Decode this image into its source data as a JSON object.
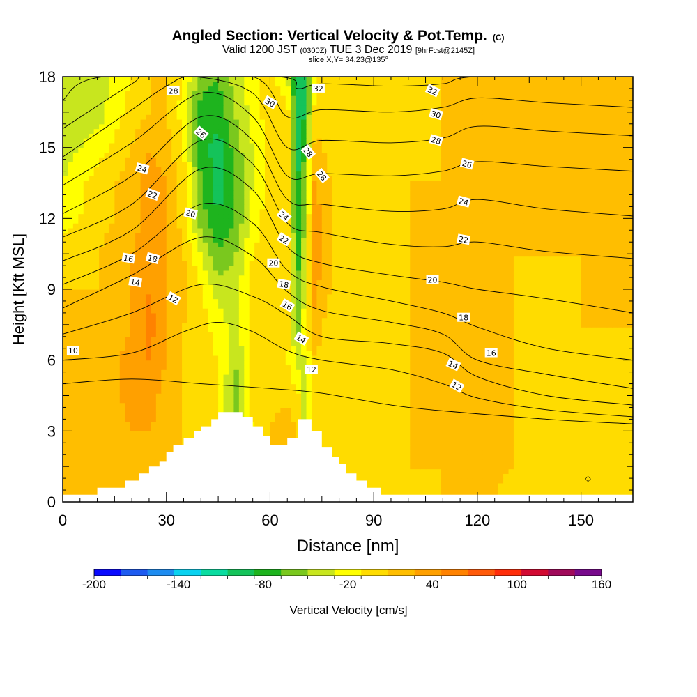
{
  "chart_data": {
    "type": "heatmap",
    "title": "Angled Section: Vertical Velocity & Pot.Temp.",
    "title_suffix": "(C)",
    "subtitle": {
      "valid_prefix": "Valid 1200 JST",
      "zulu": "(0300Z)",
      "date": "TUE 3 Dec 2019",
      "forecast": "[9hrFcst@2145Z]"
    },
    "slice_label": "slice X,Y= 34,23@135°",
    "xlabel": "Distance [nm]",
    "ylabel": "Height [Kft MSL]",
    "xlim": [
      0,
      165
    ],
    "ylim": [
      0,
      18
    ],
    "x_ticks": [
      "0",
      "30",
      "60",
      "90",
      "120",
      "150"
    ],
    "y_ticks": [
      "0",
      "3",
      "6",
      "9",
      "12",
      "15",
      "18"
    ],
    "colorbar": {
      "label": "Vertical Velocity [cm/s]",
      "tick_labels": [
        "-200",
        "-140",
        "-80",
        "-20",
        "40",
        "100",
        "160"
      ],
      "range": [
        -200,
        160
      ],
      "step": 20,
      "colors": [
        "#0a0aff",
        "#1e5bf0",
        "#1e8cf0",
        "#0ad2f0",
        "#0adca0",
        "#14c35a",
        "#1eb41e",
        "#7ac81e",
        "#c8e61e",
        "#ffff00",
        "#ffdc00",
        "#ffbe00",
        "#ffa000",
        "#ff8200",
        "#ff5a0a",
        "#ff2d0a",
        "#d20a32",
        "#a00a5a",
        "#780a8c"
      ]
    },
    "vertical_velocity_cm_s": {
      "x": [
        0,
        10,
        20,
        25,
        30,
        35,
        40,
        45,
        50,
        55,
        60,
        65,
        68,
        70,
        73,
        75,
        80,
        85,
        90,
        100,
        110,
        115,
        120,
        130,
        140,
        150,
        165
      ],
      "y": [
        0,
        1.5,
        3,
        4.5,
        6,
        7.5,
        9,
        10.5,
        12,
        13.5,
        15,
        16.5,
        18
      ],
      "values": [
        [
          20,
          20,
          20,
          20,
          20,
          20,
          20,
          20,
          20,
          10,
          20,
          30,
          10,
          10,
          10,
          10,
          10,
          20,
          10,
          10,
          20,
          30,
          30,
          10,
          10,
          10,
          20
        ],
        [
          20,
          20,
          30,
          30,
          20,
          20,
          20,
          10,
          -10,
          10,
          20,
          30,
          10,
          -10,
          10,
          10,
          10,
          20,
          10,
          20,
          20,
          30,
          30,
          20,
          10,
          10,
          20
        ],
        [
          20,
          20,
          40,
          40,
          30,
          20,
          10,
          0,
          -40,
          0,
          20,
          40,
          10,
          -20,
          10,
          10,
          10,
          20,
          10,
          20,
          20,
          20,
          20,
          20,
          10,
          10,
          20
        ],
        [
          20,
          20,
          50,
          50,
          30,
          20,
          10,
          0,
          -50,
          10,
          10,
          10,
          10,
          -40,
          10,
          10,
          10,
          20,
          10,
          20,
          20,
          20,
          20,
          20,
          10,
          10,
          20
        ],
        [
          20,
          20,
          50,
          60,
          40,
          20,
          10,
          0,
          -40,
          10,
          10,
          0,
          -30,
          -20,
          20,
          10,
          10,
          20,
          10,
          20,
          20,
          20,
          20,
          20,
          10,
          10,
          20
        ],
        [
          20,
          20,
          40,
          70,
          40,
          20,
          10,
          -10,
          -30,
          10,
          10,
          10,
          -50,
          -10,
          40,
          20,
          10,
          20,
          10,
          20,
          20,
          20,
          20,
          20,
          10,
          20,
          20
        ],
        [
          20,
          20,
          40,
          60,
          40,
          30,
          0,
          -30,
          -30,
          10,
          10,
          10,
          -60,
          -20,
          50,
          30,
          10,
          10,
          10,
          20,
          20,
          20,
          20,
          20,
          10,
          20,
          20
        ],
        [
          10,
          20,
          40,
          50,
          40,
          20,
          -20,
          -60,
          -40,
          0,
          10,
          10,
          -70,
          -30,
          60,
          40,
          10,
          10,
          10,
          20,
          20,
          20,
          20,
          20,
          20,
          20,
          20
        ],
        [
          -10,
          10,
          30,
          50,
          40,
          10,
          -50,
          -80,
          -60,
          -10,
          10,
          10,
          -80,
          -40,
          60,
          30,
          10,
          10,
          10,
          20,
          20,
          20,
          20,
          20,
          20,
          20,
          20
        ],
        [
          -20,
          10,
          30,
          50,
          40,
          10,
          -60,
          -90,
          -60,
          -20,
          10,
          10,
          -80,
          -50,
          50,
          30,
          10,
          10,
          10,
          20,
          20,
          20,
          20,
          20,
          20,
          20,
          20
        ],
        [
          -30,
          -10,
          20,
          40,
          30,
          0,
          -70,
          -90,
          -50,
          -20,
          10,
          10,
          -90,
          -60,
          30,
          20,
          10,
          10,
          10,
          10,
          20,
          20,
          20,
          20,
          20,
          20,
          20
        ],
        [
          -40,
          -30,
          10,
          20,
          20,
          -10,
          -70,
          -70,
          -40,
          -10,
          10,
          10,
          -100,
          -80,
          10,
          10,
          10,
          10,
          10,
          10,
          20,
          30,
          30,
          20,
          20,
          20,
          20
        ],
        [
          -30,
          -30,
          0,
          20,
          20,
          0,
          -50,
          -60,
          -30,
          -10,
          10,
          -20,
          -100,
          -80,
          -10,
          10,
          10,
          10,
          10,
          10,
          20,
          30,
          30,
          20,
          20,
          20,
          20
        ]
      ]
    },
    "terrain_kft": {
      "x": [
        0,
        10,
        15,
        18,
        20,
        22,
        25,
        28,
        30,
        32,
        35,
        38,
        40,
        43,
        45,
        48,
        50,
        52,
        55,
        58,
        60,
        62,
        65,
        68,
        70,
        72,
        75,
        78,
        80,
        82,
        85,
        88,
        90,
        92,
        165
      ],
      "y": [
        0.3,
        0.6,
        0.6,
        0.9,
        0.9,
        1.2,
        1.5,
        1.7,
        2.1,
        2.4,
        2.7,
        3.0,
        3.2,
        3.5,
        3.8,
        3.8,
        3.8,
        3.6,
        3.2,
        2.8,
        2.4,
        2.4,
        2.7,
        3.5,
        3.5,
        3.0,
        2.3,
        1.9,
        1.6,
        1.2,
        0.9,
        0.6,
        0.6,
        0.3,
        0.3
      ]
    },
    "theta_contours_c": [
      {
        "level": 10,
        "label": "10",
        "points": [
          [
            0,
            5.0
          ],
          [
            20,
            5.2
          ],
          [
            40,
            5.0
          ],
          [
            60,
            4.8
          ],
          [
            75,
            4.6
          ],
          [
            100,
            4.0
          ],
          [
            140,
            3.5
          ],
          [
            165,
            3.3
          ]
        ]
      },
      {
        "level": 12,
        "label": "12",
        "points": [
          [
            0,
            6.0
          ],
          [
            20,
            6.3
          ],
          [
            35,
            7.2
          ],
          [
            45,
            7.6
          ],
          [
            55,
            7.2
          ],
          [
            65,
            6.4
          ],
          [
            75,
            6.0
          ],
          [
            95,
            5.6
          ],
          [
            110,
            5.0
          ],
          [
            120,
            4.4
          ],
          [
            140,
            3.9
          ],
          [
            165,
            3.6
          ]
        ]
      },
      {
        "level": 14,
        "label": "14",
        "points": [
          [
            0,
            7.1
          ],
          [
            20,
            8.0
          ],
          [
            40,
            9.2
          ],
          [
            55,
            8.7
          ],
          [
            65,
            7.9
          ],
          [
            75,
            7.0
          ],
          [
            95,
            6.7
          ],
          [
            110,
            6.3
          ],
          [
            120,
            5.3
          ],
          [
            140,
            4.5
          ],
          [
            165,
            4.1
          ]
        ]
      },
      {
        "level": 16,
        "label": "16",
        "points": [
          [
            0,
            8.2
          ],
          [
            20,
            9.6
          ],
          [
            40,
            11.2
          ],
          [
            55,
            10.4
          ],
          [
            65,
            8.9
          ],
          [
            75,
            8.1
          ],
          [
            95,
            7.6
          ],
          [
            110,
            7.1
          ],
          [
            120,
            6.0
          ],
          [
            140,
            5.4
          ],
          [
            165,
            4.8
          ]
        ]
      },
      {
        "level": 18,
        "label": "18",
        "points": [
          [
            0,
            9.2
          ],
          [
            20,
            10.5
          ],
          [
            40,
            12.6
          ],
          [
            55,
            11.8
          ],
          [
            65,
            9.8
          ],
          [
            75,
            9.1
          ],
          [
            95,
            8.5
          ],
          [
            110,
            8.0
          ],
          [
            120,
            7.4
          ],
          [
            140,
            6.5
          ],
          [
            165,
            6.0
          ]
        ]
      },
      {
        "level": 20,
        "label": "20",
        "points": [
          [
            0,
            10.2
          ],
          [
            20,
            11.5
          ],
          [
            40,
            14.1
          ],
          [
            55,
            13.2
          ],
          [
            65,
            10.8
          ],
          [
            75,
            10.1
          ],
          [
            95,
            9.6
          ],
          [
            110,
            9.3
          ],
          [
            120,
            9.0
          ],
          [
            140,
            8.6
          ],
          [
            165,
            8.0
          ]
        ]
      },
      {
        "level": 22,
        "label": "22",
        "points": [
          [
            0,
            11.2
          ],
          [
            20,
            12.6
          ],
          [
            40,
            15.3
          ],
          [
            55,
            14.3
          ],
          [
            65,
            11.8
          ],
          [
            75,
            11.4
          ],
          [
            95,
            10.9
          ],
          [
            110,
            10.8
          ],
          [
            120,
            11.0
          ],
          [
            140,
            10.6
          ],
          [
            165,
            10.3
          ]
        ]
      },
      {
        "level": 24,
        "label": "24",
        "points": [
          [
            0,
            12.2
          ],
          [
            20,
            13.8
          ],
          [
            40,
            16.3
          ],
          [
            55,
            15.3
          ],
          [
            65,
            12.8
          ],
          [
            75,
            12.6
          ],
          [
            95,
            12.3
          ],
          [
            110,
            12.4
          ],
          [
            120,
            12.8
          ],
          [
            140,
            12.4
          ],
          [
            165,
            12.1
          ]
        ]
      },
      {
        "level": 26,
        "label": "26",
        "points": [
          [
            0,
            13.4
          ],
          [
            20,
            15.2
          ],
          [
            40,
            17.3
          ],
          [
            55,
            16.3
          ],
          [
            65,
            13.8
          ],
          [
            75,
            13.9
          ],
          [
            95,
            13.8
          ],
          [
            110,
            14.0
          ],
          [
            120,
            14.4
          ],
          [
            140,
            14.2
          ],
          [
            165,
            14.0
          ]
        ]
      },
      {
        "level": 28,
        "label": "28",
        "points": [
          [
            0,
            14.6
          ],
          [
            20,
            16.6
          ],
          [
            30,
            17.6
          ],
          [
            38,
            18.0
          ],
          [
            55,
            17.3
          ],
          [
            65,
            15.0
          ],
          [
            75,
            15.3
          ],
          [
            95,
            15.2
          ],
          [
            110,
            15.4
          ],
          [
            120,
            15.9
          ],
          [
            140,
            15.7
          ],
          [
            165,
            15.5
          ]
        ]
      },
      {
        "level": 30,
        "label": "30",
        "points": [
          [
            0,
            15.8
          ],
          [
            20,
            17.7
          ],
          [
            25,
            18.0
          ],
          [
            55,
            18.0
          ],
          [
            65,
            16.3
          ],
          [
            75,
            16.6
          ],
          [
            95,
            16.5
          ],
          [
            110,
            16.7
          ],
          [
            120,
            17.1
          ],
          [
            140,
            16.9
          ],
          [
            165,
            16.7
          ]
        ]
      },
      {
        "level": 32,
        "label": "32",
        "points": [
          [
            0,
            17.0
          ],
          [
            12,
            18.0
          ],
          [
            62,
            18.0
          ],
          [
            68,
            17.5
          ],
          [
            75,
            17.7
          ],
          [
            95,
            17.6
          ],
          [
            110,
            17.7
          ],
          [
            120,
            18.0
          ],
          [
            165,
            18.0
          ]
        ]
      }
    ],
    "contour_labels": [
      {
        "text": "28",
        "x": 32,
        "y": 17.4,
        "angle": 0
      },
      {
        "text": "30",
        "x": 60,
        "y": 16.9,
        "angle": 30
      },
      {
        "text": "32",
        "x": 74,
        "y": 17.5,
        "angle": 0
      },
      {
        "text": "26",
        "x": 40,
        "y": 15.6,
        "angle": 40
      },
      {
        "text": "24",
        "x": 23,
        "y": 14.1,
        "angle": 15
      },
      {
        "text": "22",
        "x": 26,
        "y": 13.0,
        "angle": 20
      },
      {
        "text": "20",
        "x": 37,
        "y": 12.2,
        "angle": 15
      },
      {
        "text": "18",
        "x": 26,
        "y": 10.3,
        "angle": 15
      },
      {
        "text": "16",
        "x": 19,
        "y": 10.3,
        "angle": 10
      },
      {
        "text": "14",
        "x": 21,
        "y": 9.3,
        "angle": 10
      },
      {
        "text": "12",
        "x": 32,
        "y": 8.6,
        "angle": 30
      },
      {
        "text": "10",
        "x": 3,
        "y": 6.4,
        "angle": 0
      },
      {
        "text": "28",
        "x": 71,
        "y": 14.8,
        "angle": 50
      },
      {
        "text": "28",
        "x": 75,
        "y": 13.8,
        "angle": 50
      },
      {
        "text": "24",
        "x": 64,
        "y": 12.1,
        "angle": 40
      },
      {
        "text": "22",
        "x": 64,
        "y": 11.1,
        "angle": 30
      },
      {
        "text": "20",
        "x": 61,
        "y": 10.1,
        "angle": 0
      },
      {
        "text": "18",
        "x": 64,
        "y": 9.2,
        "angle": 10
      },
      {
        "text": "16",
        "x": 65,
        "y": 8.3,
        "angle": 30
      },
      {
        "text": "14",
        "x": 69,
        "y": 6.9,
        "angle": 30
      },
      {
        "text": "12",
        "x": 72,
        "y": 5.6,
        "angle": 0
      },
      {
        "text": "32",
        "x": 107,
        "y": 17.4,
        "angle": 25
      },
      {
        "text": "30",
        "x": 108,
        "y": 16.4,
        "angle": 15
      },
      {
        "text": "28",
        "x": 108,
        "y": 15.3,
        "angle": 15
      },
      {
        "text": "26",
        "x": 117,
        "y": 14.3,
        "angle": 15
      },
      {
        "text": "24",
        "x": 116,
        "y": 12.7,
        "angle": 15
      },
      {
        "text": "22",
        "x": 116,
        "y": 11.1,
        "angle": 10
      },
      {
        "text": "20",
        "x": 107,
        "y": 9.4,
        "angle": 0
      },
      {
        "text": "18",
        "x": 116,
        "y": 7.8,
        "angle": 0
      },
      {
        "text": "16",
        "x": 124,
        "y": 6.3,
        "angle": 0
      },
      {
        "text": "14",
        "x": 113,
        "y": 5.8,
        "angle": 25
      },
      {
        "text": "12",
        "x": 114,
        "y": 4.9,
        "angle": 30
      }
    ],
    "marker": {
      "symbol": "◇",
      "x": 152,
      "y": 1.0
    }
  }
}
